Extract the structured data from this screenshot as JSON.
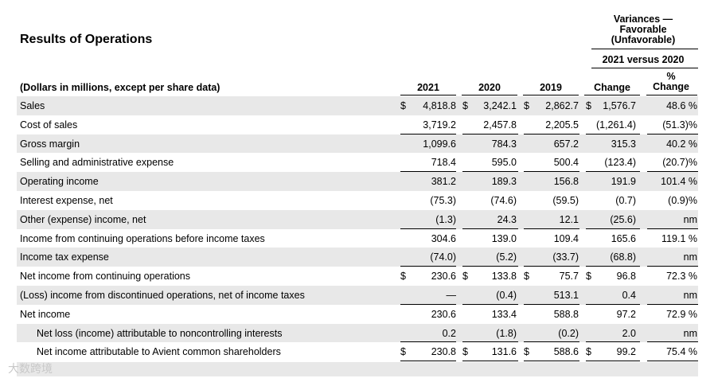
{
  "title": "Results of Operations",
  "variance_header": {
    "line1": "Variances —",
    "line2": "Favorable",
    "line3": "(Unfavorable)",
    "sub": "2021 versus 2020"
  },
  "columns": {
    "desc": "(Dollars in millions, except per share data)",
    "y2021": "2021",
    "y2020": "2020",
    "y2019": "2019",
    "change": "Change",
    "pct_line1": "%",
    "pct_line2": "Change"
  },
  "rows": [
    {
      "label": "Sales",
      "v2021": "4,818.8",
      "v2020": "3,242.1",
      "v2019": "2,862.7",
      "change": "1,576.7",
      "pct": "48.6 %",
      "dollar": true,
      "shade": true
    },
    {
      "label": "Cost of sales",
      "v2021": "3,719.2",
      "v2020": "2,457.8",
      "v2019": "2,205.5",
      "change": "(1,261.4)",
      "pct": "(51.3)%",
      "underline": true
    },
    {
      "label": "Gross margin",
      "v2021": "1,099.6",
      "v2020": "784.3",
      "v2019": "657.2",
      "change": "315.3",
      "pct": "40.2 %",
      "shade": true
    },
    {
      "label": "Selling and administrative expense",
      "v2021": "718.4",
      "v2020": "595.0",
      "v2019": "500.4",
      "change": "(123.4)",
      "pct": "(20.7)%",
      "underline": true
    },
    {
      "label": "Operating income",
      "v2021": "381.2",
      "v2020": "189.3",
      "v2019": "156.8",
      "change": "191.9",
      "pct": "101.4 %",
      "shade": true
    },
    {
      "label": "Interest expense, net",
      "v2021": "(75.3)",
      "v2020": "(74.6)",
      "v2019": "(59.5)",
      "change": "(0.7)",
      "pct": "(0.9)%"
    },
    {
      "label": "Other (expense) income, net",
      "v2021": "(1.3)",
      "v2020": "24.3",
      "v2019": "12.1",
      "change": "(25.6)",
      "pct": "nm",
      "shade": true,
      "underline": true
    },
    {
      "label": "Income from continuing operations before income taxes",
      "v2021": "304.6",
      "v2020": "139.0",
      "v2019": "109.4",
      "change": "165.6",
      "pct": "119.1 %"
    },
    {
      "label": "Income tax expense",
      "v2021": "(74.0)",
      "v2020": "(5.2)",
      "v2019": "(33.7)",
      "change": "(68.8)",
      "pct": "nm",
      "shade": true,
      "underline": true
    },
    {
      "label": "Net income from continuing operations",
      "v2021": "230.6",
      "v2020": "133.8",
      "v2019": "75.7",
      "change": "96.8",
      "pct": "72.3 %",
      "dollar": true
    },
    {
      "label": "(Loss) income from discontinued operations, net of income taxes",
      "v2021": "—",
      "v2020": "(0.4)",
      "v2019": "513.1",
      "change": "0.4",
      "pct": "nm",
      "shade": true,
      "underline": true
    },
    {
      "label": "Net income",
      "v2021": "230.6",
      "v2020": "133.4",
      "v2019": "588.8",
      "change": "97.2",
      "pct": "72.9 %"
    },
    {
      "label": "Net loss (income) attributable to noncontrolling interests",
      "v2021": "0.2",
      "v2020": "(1.8)",
      "v2019": "(0.2)",
      "change": "2.0",
      "pct": "nm",
      "shade": true,
      "indent": true,
      "underline": true
    },
    {
      "label": "Net income attributable to Avient common shareholders",
      "v2021": "230.8",
      "v2020": "131.6",
      "v2019": "588.6",
      "change": "99.2",
      "pct": "75.4 %",
      "dollar": true,
      "indent": true,
      "double": true
    }
  ],
  "watermark": "大数跨境",
  "dollar_sign": "$"
}
